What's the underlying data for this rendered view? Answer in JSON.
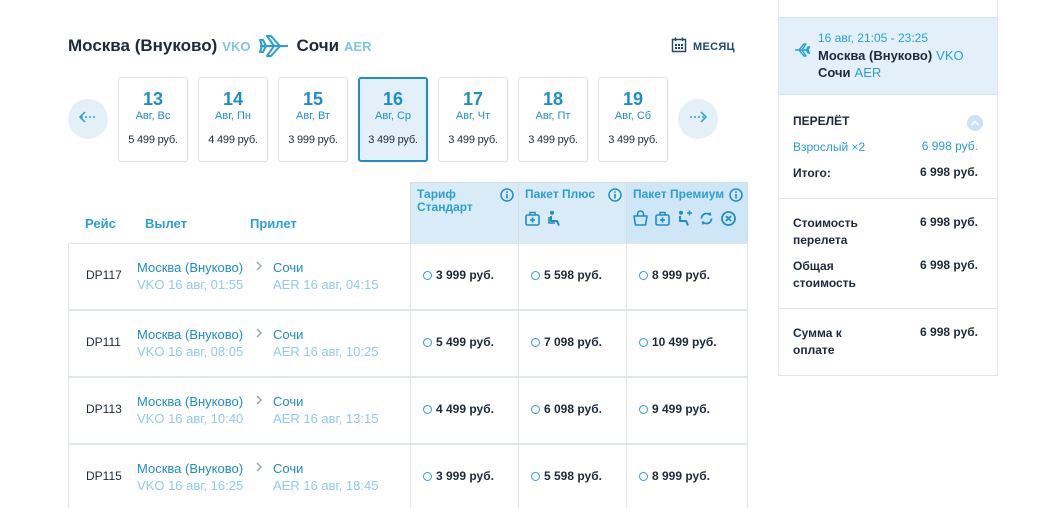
{
  "header": {
    "origin_city": "Москва (Внуково)",
    "origin_code": "VKO",
    "dest_city": "Сочи",
    "dest_code": "AER",
    "month_label": "МЕСЯЦ"
  },
  "dates": [
    {
      "day": "13",
      "weekday": "Авг, Вс",
      "price": "5 499 руб."
    },
    {
      "day": "14",
      "weekday": "Авг, Пн",
      "price": "4 499 руб."
    },
    {
      "day": "15",
      "weekday": "Авг, Вт",
      "price": "3 999 руб."
    },
    {
      "day": "16",
      "weekday": "Авг, Ср",
      "price": "3 499 руб."
    },
    {
      "day": "17",
      "weekday": "Авг, Чт",
      "price": "3 499 руб."
    },
    {
      "day": "18",
      "weekday": "Авг, Пт",
      "price": "3 499 руб."
    },
    {
      "day": "19",
      "weekday": "Авг, Сб",
      "price": "3 499 руб."
    }
  ],
  "columns": {
    "flight": "Рейс",
    "departure": "Вылет",
    "arrival": "Прилет"
  },
  "fares": [
    {
      "name": "Тариф Стандарт"
    },
    {
      "name": "Пакет Плюс"
    },
    {
      "name": "Пакет Премиум"
    }
  ],
  "flights": [
    {
      "number": "DP117",
      "dep_city": "Москва (Внуково)",
      "dep_time": "VKO 16 авг, 01:55",
      "arr_city": "Сочи",
      "arr_time": "AER 16 авг, 04:15",
      "prices": [
        "3 999 руб.",
        "5 598 руб.",
        "8 999 руб."
      ]
    },
    {
      "number": "DP111",
      "dep_city": "Москва (Внуково)",
      "dep_time": "VKO 16 авг, 08:05",
      "arr_city": "Сочи",
      "arr_time": "AER 16 авг, 10:25",
      "prices": [
        "5 499 руб.",
        "7 098 руб.",
        "10 499 руб."
      ]
    },
    {
      "number": "DP113",
      "dep_city": "Москва (Внуково)",
      "dep_time": "VKO 16 авг, 10:40",
      "arr_city": "Сочи",
      "arr_time": "AER 16 авг, 13:15",
      "prices": [
        "4 499 руб.",
        "6 098 руб.",
        "9 499 руб."
      ]
    },
    {
      "number": "DP115",
      "dep_city": "Москва (Внуково)",
      "dep_time": "VKO 16 авг, 16:25",
      "arr_city": "Сочи",
      "arr_time": "AER 16 авг, 18:45",
      "prices": [
        "3 999 руб.",
        "5 598 руб.",
        "8 999 руб."
      ]
    }
  ],
  "summary": {
    "time_range": "16 авг, 21:05 - 23:25",
    "from_city": "Москва (Внуково)",
    "from_code": "VKO",
    "to_city": "Сочи",
    "to_code": "AER",
    "section_title": "ПЕРЕЛЁТ",
    "passenger_label": "Взрослый ×2",
    "passenger_price": "6 998 руб.",
    "total_label": "Итого:",
    "total_value": "6 998 руб.",
    "flight_cost_label": "Стоимость перелета",
    "flight_cost_value": "6 998 руб.",
    "overall_label": "Общая стоимость",
    "overall_value": "6 998 руб.",
    "pay_label": "Сумма к оплате",
    "pay_value": "6 998 руб."
  },
  "colors": {
    "accent": "#1e8fc6",
    "accent_light": "#8fcbea",
    "selected_bg": "#e3f0f9"
  }
}
